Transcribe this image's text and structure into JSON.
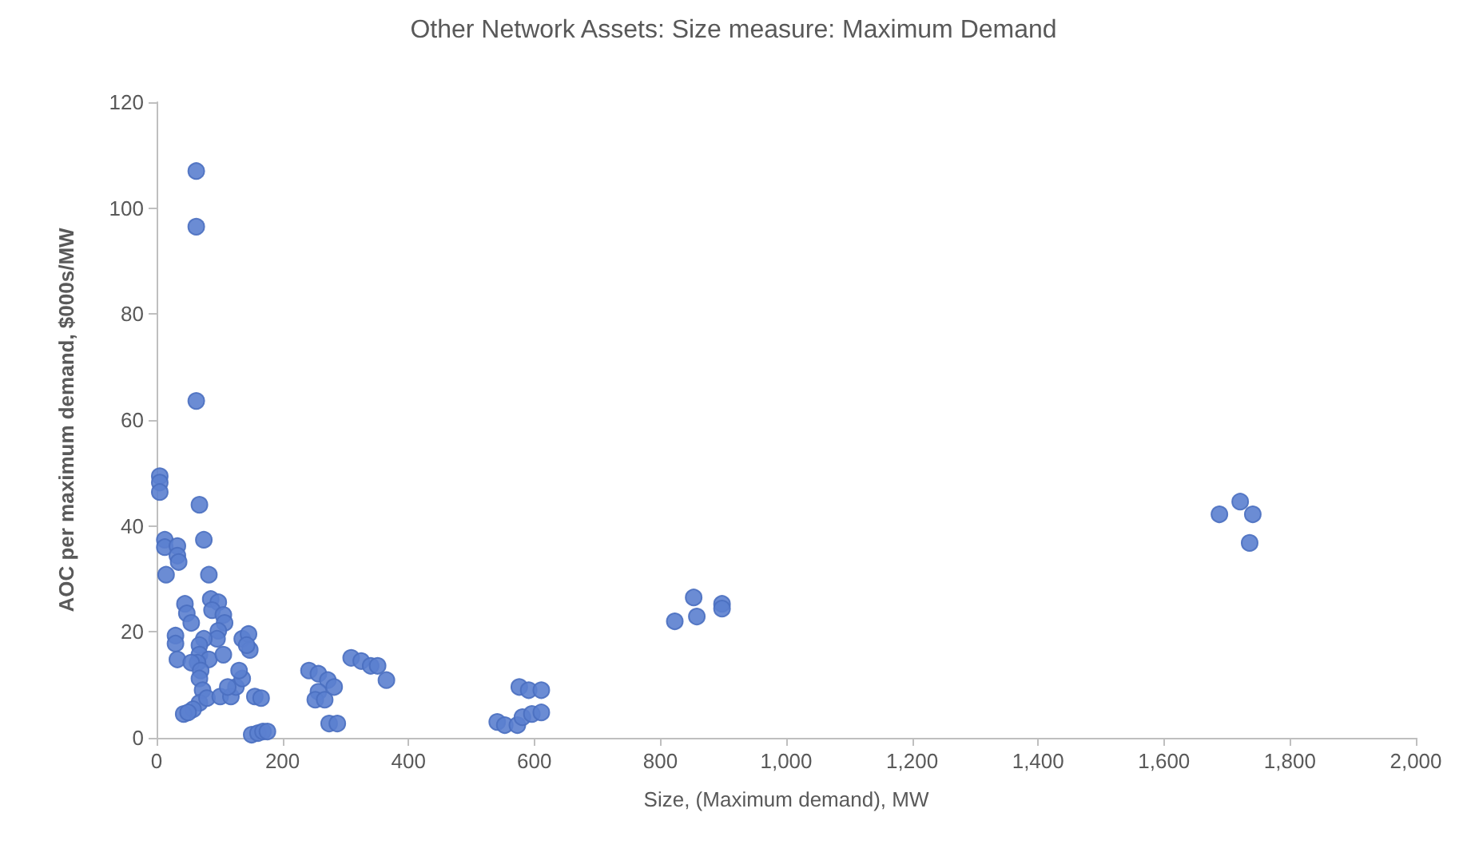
{
  "chart_data": {
    "type": "scatter",
    "title": "Other Network Assets: Size measure: Maximum Demand",
    "xlabel": "Size, (Maximum demand), MW",
    "ylabel": "AOC per maximum demand, $000s/MW",
    "xlim": [
      0,
      2000
    ],
    "xticks": [
      0,
      200,
      400,
      600,
      800,
      {
        "value": 1000,
        "label": "1,000"
      },
      {
        "value": 1200,
        "label": "1,200"
      },
      {
        "value": 1400,
        "label": "1,400"
      },
      {
        "value": 1600,
        "label": "1,600"
      },
      {
        "value": 1800,
        "label": "1,800"
      },
      {
        "value": 2000,
        "label": "2,000"
      }
    ],
    "ylim": [
      0,
      120
    ],
    "yticks": [
      0,
      20,
      40,
      60,
      80,
      100,
      120
    ],
    "grid": false,
    "marker": "circle",
    "series": [
      {
        "color": "#5b7fcf",
        "x": [
          5,
          5,
          5,
          13,
          13,
          15,
          63,
          63,
          63,
          68,
          75,
          83,
          33,
          33,
          35,
          45,
          48,
          30,
          30,
          33,
          55,
          86,
          98,
          88,
          106,
          108,
          98,
          96,
          75,
          68,
          68,
          83,
          65,
          55,
          70,
          68,
          73,
          68,
          58,
          43,
          50,
          80,
          101,
          118,
          126,
          136,
          131,
          136,
          146,
          148,
          143,
          156,
          166,
          151,
          161,
          169,
          176,
          113,
          106,
          242,
          257,
          272,
          257,
          252,
          267,
          282,
          274,
          287,
          309,
          325,
          340,
          351,
          365,
          541,
          553,
          573,
          581,
          596,
          611,
          576,
          591,
          611,
          823,
          853,
          858,
          898,
          898,
          1688,
          1721,
          1741,
          1736
        ],
        "values": [
          49.4,
          48.2,
          46.4,
          37.4,
          36,
          30.8,
          107,
          96.5,
          63.6,
          44,
          37.4,
          30.8,
          36.2,
          34.4,
          33.2,
          25.3,
          23.5,
          19.3,
          17.8,
          14.8,
          21.7,
          26.2,
          25.6,
          24.1,
          23.2,
          21.7,
          20.2,
          18.7,
          18.7,
          17.5,
          15.7,
          14.8,
          14.2,
          14.2,
          12.7,
          11.2,
          9,
          6.6,
          5.4,
          4.5,
          4.8,
          7.5,
          7.8,
          7.8,
          9.6,
          11.2,
          12.7,
          18.7,
          19.6,
          16.6,
          17.5,
          7.8,
          7.5,
          0.6,
          0.9,
          1.2,
          1.2,
          9.6,
          15.7,
          12.7,
          12.1,
          10.9,
          8.7,
          7.2,
          7.2,
          9.6,
          2.7,
          2.7,
          15.1,
          14.5,
          13.6,
          13.6,
          10.9,
          3,
          2.4,
          2.4,
          3.9,
          4.5,
          4.8,
          9.6,
          9,
          9,
          22,
          26.5,
          22.9,
          25.3,
          24.4,
          42.2,
          44.6,
          42.2,
          36.8
        ]
      }
    ]
  }
}
